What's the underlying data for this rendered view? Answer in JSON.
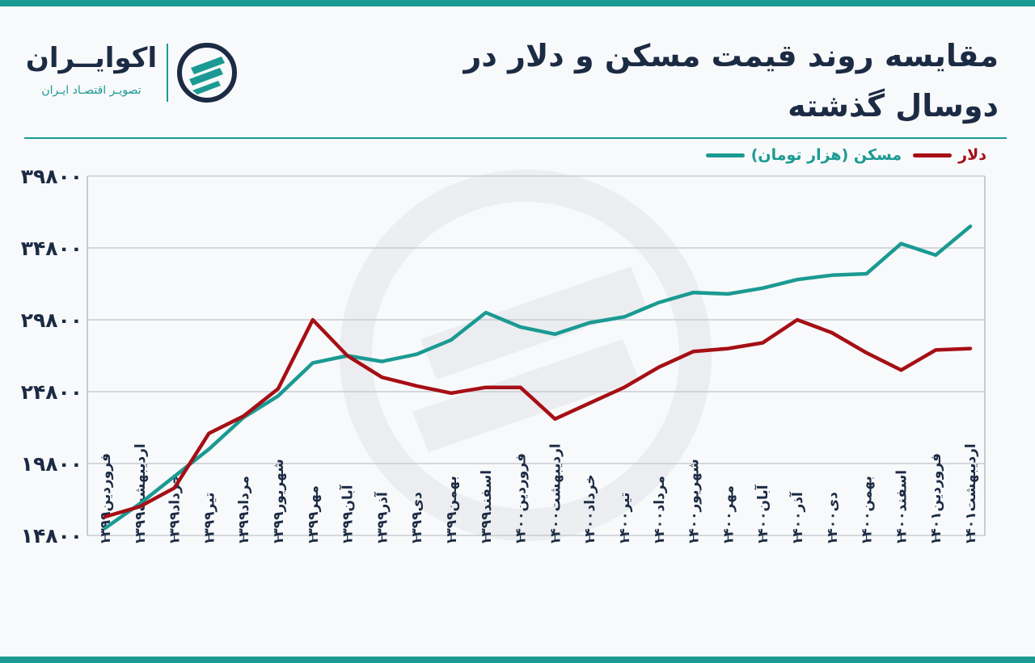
{
  "title": "مقایسه روند قیمت مسکن و دلار در دوسال گذشته",
  "logo": {
    "name": "اکوایــران",
    "tagline": "تصویـر اقتصـاد ایـران"
  },
  "colors": {
    "accent": "#1a9a93",
    "dollar": "#a50f15",
    "housing": "#1a9a93",
    "title": "#1c2b44"
  },
  "chart_data": {
    "type": "line",
    "ylim": [
      14800,
      39800
    ],
    "yticks": [
      14800,
      19800,
      24800,
      29800,
      34800,
      39800
    ],
    "ytick_labels": [
      "۱۴۸۰۰",
      "۱۹۸۰۰",
      "۲۴۸۰۰",
      "۲۹۸۰۰",
      "۳۴۸۰۰",
      "۳۹۸۰۰"
    ],
    "grid": true,
    "legend_position": "top-right",
    "categories": [
      "فروردین۱۳۹۹",
      "اردیبهشت۱۳۹۹",
      "خرداد۱۳۹۹",
      "تیر۱۳۹۹",
      "مرداد۱۳۹۹",
      "شهریور۱۳۹۹",
      "مهر۱۳۹۹",
      "آبان۱۳۹۹",
      "آذر۱۳۹۹",
      "دی۱۳۹۹",
      "بهمن۱۳۹۹",
      "اسفند۱۳۹۹",
      "فروردین۱۴۰۰",
      "اردیبهشت۱۴۰۰",
      "خرداد۱۴۰۰",
      "تیر۱۴۰۰",
      "مرداد۱۴۰۰",
      "شهریور۱۴۰۰",
      "مهر۱۴۰۰",
      "آبان۱۴۰۰",
      "آذر۱۴۰۰",
      "دی۱۴۰۰",
      "بهمن۱۴۰۰",
      "اسفند۱۴۰۰",
      "فروردین۱۴۰۱",
      "اردیبهشت۱۴۰۱"
    ],
    "series": [
      {
        "name": "دلار",
        "color": "#a50f15",
        "values": [
          16100,
          16800,
          18100,
          21900,
          23100,
          25000,
          29800,
          27300,
          25800,
          25200,
          24700,
          25100,
          25100,
          22900,
          24000,
          25100,
          26500,
          27600,
          27800,
          28200,
          29800,
          28900,
          27500,
          26300,
          27700,
          27800
        ]
      },
      {
        "name": "مسکن (هزار تومان)",
        "color": "#1a9a93",
        "values": [
          15300,
          17000,
          18900,
          20800,
          23000,
          24500,
          26800,
          27300,
          26900,
          27400,
          28400,
          30300,
          29300,
          28800,
          29600,
          30000,
          31000,
          31700,
          31600,
          32000,
          32600,
          32900,
          33000,
          35100,
          34300,
          36300
        ]
      }
    ]
  }
}
